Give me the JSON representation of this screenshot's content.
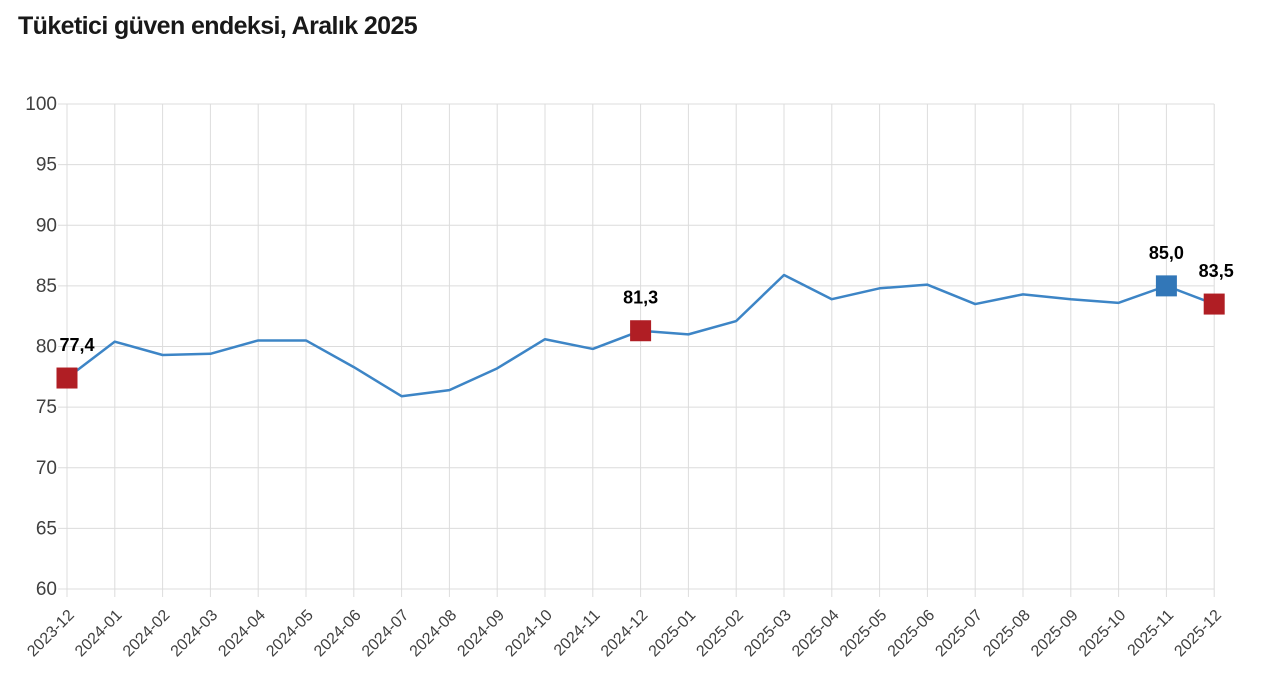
{
  "title": "Tüketici güven endeksi, Aralık 2025",
  "chart_data": {
    "type": "line",
    "title": "Tüketici güven endeksi, Aralık 2025",
    "xlabel": "",
    "ylabel": "",
    "ylim": [
      60,
      100
    ],
    "yticks": [
      60,
      65,
      70,
      75,
      80,
      85,
      90,
      95,
      100
    ],
    "grid": true,
    "legend": false,
    "categories": [
      "2023-12",
      "2024-01",
      "2024-02",
      "2024-03",
      "2024-04",
      "2024-05",
      "2024-06",
      "2024-07",
      "2024-08",
      "2024-09",
      "2024-10",
      "2024-11",
      "2024-12",
      "2025-01",
      "2025-02",
      "2025-03",
      "2025-04",
      "2025-05",
      "2025-06",
      "2025-07",
      "2025-08",
      "2025-09",
      "2025-10",
      "2025-11",
      "2025-12"
    ],
    "series": [
      {
        "name": "Tüketici güven endeksi",
        "values": [
          77.4,
          80.4,
          79.3,
          79.4,
          80.5,
          80.5,
          78.3,
          75.9,
          76.4,
          78.2,
          80.6,
          79.8,
          81.3,
          81.0,
          82.1,
          85.9,
          83.9,
          84.8,
          85.1,
          83.5,
          84.3,
          83.9,
          83.6,
          85.0,
          83.5
        ]
      }
    ],
    "highlights": [
      {
        "category": "2023-12",
        "index": 0,
        "value": 77.4,
        "label": "77,4",
        "marker_color": "#b01e24",
        "label_dx": 10
      },
      {
        "category": "2024-12",
        "index": 12,
        "value": 81.3,
        "label": "81,3",
        "marker_color": "#b01e24",
        "label_dx": 0
      },
      {
        "category": "2025-11",
        "index": 23,
        "value": 85.0,
        "label": "85,0",
        "marker_color": "#3277b8",
        "label_dx": 0
      },
      {
        "category": "2025-12",
        "index": 24,
        "value": 83.5,
        "label": "83,5",
        "marker_color": "#b01e24",
        "label_dx": 2
      }
    ],
    "colors": {
      "line": "#3d85c6",
      "grid": "#dcdcdc",
      "axis_text": "#404040",
      "point_label": "#000000",
      "title_text": "#191919"
    }
  }
}
